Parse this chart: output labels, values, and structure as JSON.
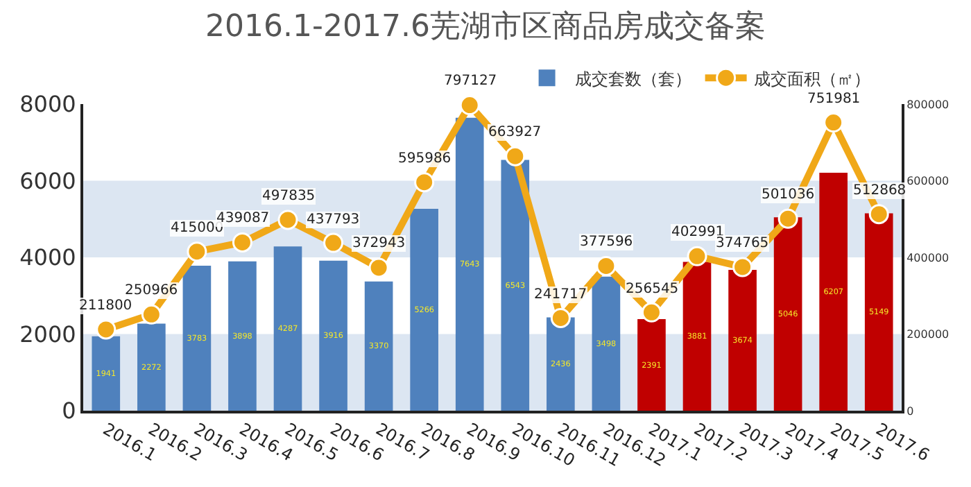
{
  "chart_data": {
    "type": "bar",
    "title": "2016.1-2017.6芜湖市区商品房成交备案",
    "categories": [
      "2016.1",
      "2016.2",
      "2016.3",
      "2016.4",
      "2016.5",
      "2016.6",
      "2016.7",
      "2016.8",
      "2016.9",
      "2016.10",
      "2016.11",
      "2016.12",
      "2017.1",
      "2017.2",
      "2017.3",
      "2017.4",
      "2017.5",
      "2017.6"
    ],
    "series": [
      {
        "name": "成交套数（套）",
        "color": "#4f81bd",
        "colors": [
          "#4f81bd",
          "#4f81bd",
          "#4f81bd",
          "#4f81bd",
          "#4f81bd",
          "#4f81bd",
          "#4f81bd",
          "#4f81bd",
          "#4f81bd",
          "#4f81bd",
          "#4f81bd",
          "#4f81bd",
          "#c00000",
          "#c00000",
          "#c00000",
          "#c00000",
          "#c00000",
          "#c00000"
        ],
        "values": [
          1941,
          2272,
          3783,
          3898,
          4287,
          3916,
          3370,
          5266,
          7643,
          6543,
          2436,
          3498,
          2391,
          3881,
          3674,
          5046,
          6207,
          5149
        ]
      },
      {
        "name": "成交面积（㎡）",
        "type": "line",
        "axis": "y2",
        "color": "#f0a818",
        "values": [
          211800,
          250966,
          415000,
          439087,
          497835,
          437793,
          372943,
          595986,
          797127,
          663927,
          241717,
          377596,
          256545,
          402991,
          374765,
          501036,
          751981,
          512868
        ]
      }
    ],
    "ylim": [
      0,
      8000
    ],
    "yticks": [
      0,
      2000,
      4000,
      6000,
      8000
    ],
    "y2lim": [
      0,
      800000
    ],
    "y2ticks": [
      0,
      200000,
      400000,
      600000,
      800000
    ],
    "bands": [
      {
        "axis": "y",
        "from": 0,
        "to": 2000,
        "color": "#dce6f2"
      },
      {
        "axis": "y",
        "from": 4000,
        "to": 6000,
        "color": "#dce6f2"
      }
    ],
    "data_labels": true,
    "legend": "top",
    "marker": "circle",
    "grid": false
  }
}
